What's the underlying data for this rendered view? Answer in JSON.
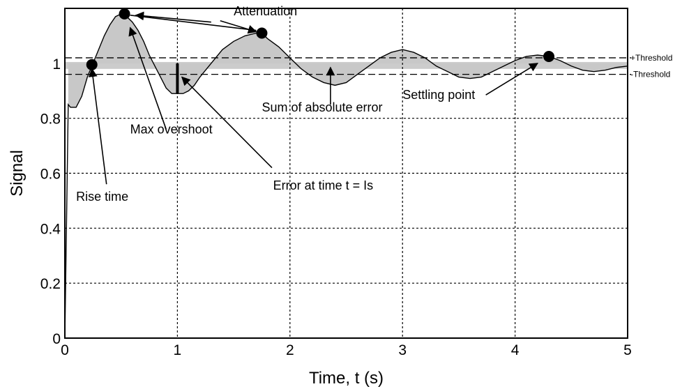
{
  "chart_data": {
    "type": "line",
    "xlabel": "Time, t (s)",
    "ylabel": "Signal",
    "xlim": [
      0,
      5
    ],
    "ylim": [
      0,
      1.2
    ],
    "x_ticks": [
      "0",
      "1",
      "2",
      "3",
      "4",
      "5"
    ],
    "y_ticks": [
      "0",
      "0.2",
      "0.4",
      "0.6",
      "0.8",
      "1"
    ],
    "x_tick_values": [
      0,
      1,
      2,
      3,
      4,
      5
    ],
    "y_tick_values": [
      0,
      0.2,
      0.4,
      0.6,
      0.8,
      1.0
    ],
    "grid": true,
    "reference_value": 1.0,
    "thresholds": [
      {
        "label": "+Threshold",
        "value": 1.02
      },
      {
        "label": "-Threshold",
        "value": 0.96
      }
    ],
    "series": [
      {
        "x": [
          0,
          0.03,
          0.05,
          0.1,
          0.15,
          0.2,
          0.25,
          0.3,
          0.35,
          0.4,
          0.45,
          0.5,
          0.55,
          0.6,
          0.65,
          0.7,
          0.75,
          0.8,
          0.85,
          0.9,
          0.95,
          1.0,
          1.05,
          1.1,
          1.15,
          1.2,
          1.3,
          1.4,
          1.5,
          1.6,
          1.7,
          1.75,
          1.8,
          1.9,
          2.0,
          2.1,
          2.2,
          2.3,
          2.4,
          2.5,
          2.6,
          2.7,
          2.8,
          2.9,
          3.0,
          3.1,
          3.2,
          3.3,
          3.4,
          3.5,
          3.6,
          3.7,
          3.8,
          3.9,
          4.0,
          4.1,
          4.2,
          4.3,
          4.4,
          4.5,
          4.6,
          4.7,
          4.8,
          4.9,
          5.0
        ],
        "y": [
          0,
          0.85,
          0.84,
          0.84,
          0.88,
          0.95,
          1.0,
          1.05,
          1.1,
          1.14,
          1.17,
          1.18,
          1.17,
          1.15,
          1.12,
          1.08,
          1.03,
          0.99,
          0.95,
          0.91,
          0.89,
          0.89,
          0.89,
          0.9,
          0.92,
          0.95,
          1.0,
          1.05,
          1.08,
          1.1,
          1.11,
          1.11,
          1.09,
          1.06,
          1.02,
          0.98,
          0.95,
          0.93,
          0.92,
          0.93,
          0.96,
          0.99,
          1.02,
          1.04,
          1.05,
          1.04,
          1.02,
          0.99,
          0.97,
          0.95,
          0.945,
          0.95,
          0.97,
          0.99,
          1.01,
          1.025,
          1.03,
          1.025,
          1.01,
          0.99,
          0.975,
          0.97,
          0.975,
          0.985,
          0.99
        ]
      }
    ],
    "markers": [
      {
        "name": "rise-time-point",
        "x": 0.24,
        "y": 0.995
      },
      {
        "name": "max-overshoot-point",
        "x": 0.53,
        "y": 1.18
      },
      {
        "name": "attenuation-point",
        "x": 1.75,
        "y": 1.11
      },
      {
        "name": "settling-point",
        "x": 4.3,
        "y": 1.025
      }
    ],
    "error_mark": {
      "x": 1.0,
      "y_from": 0.89,
      "y_to": 1.0
    },
    "annotations": [
      {
        "name": "annotation-attenuation",
        "text": "Attenuation",
        "x": 1.5,
        "y": 1.175
      },
      {
        "name": "annotation-max-overshoot",
        "text": "Max overshoot",
        "x": 0.58,
        "y": 0.745
      },
      {
        "name": "annotation-rise-time",
        "text": "Rise time",
        "x": 0.1,
        "y": 0.5
      },
      {
        "name": "annotation-sum-abs-error",
        "text": "Sum of absolute error",
        "x": 1.75,
        "y": 0.825
      },
      {
        "name": "annotation-error-at-time",
        "text": "Error at time t = Is",
        "x": 1.85,
        "y": 0.54
      },
      {
        "name": "annotation-settling-point",
        "text": "Settling point",
        "x": 3.0,
        "y": 0.87
      }
    ],
    "arrows": [
      {
        "name": "arrow-rise-time",
        "x1": 0.37,
        "y1": 0.56,
        "x2": 0.24,
        "y2": 0.98
      },
      {
        "name": "arrow-max-overshoot",
        "x1": 0.9,
        "y1": 0.76,
        "x2": 0.58,
        "y2": 1.13
      },
      {
        "name": "arrow-attenuation-1",
        "x1": 1.3,
        "y1": 1.15,
        "x2": 0.63,
        "y2": 1.175
      },
      {
        "name": "arrow-attenuation-2",
        "x1": 1.38,
        "y1": 1.155,
        "x2": 1.7,
        "y2": 1.115
      },
      {
        "name": "arrow-attenuation-link",
        "x1": 0.58,
        "y1": 1.175,
        "x2": 1.7,
        "y2": 1.12
      },
      {
        "name": "arrow-error-at-time",
        "x1": 1.84,
        "y1": 0.62,
        "x2": 1.04,
        "y2": 0.95
      },
      {
        "name": "arrow-sum-abs-error",
        "x1": 2.36,
        "y1": 0.85,
        "x2": 2.36,
        "y2": 0.985
      },
      {
        "name": "arrow-settling-point",
        "x1": 3.74,
        "y1": 0.885,
        "x2": 4.2,
        "y2": 1.0
      }
    ]
  }
}
